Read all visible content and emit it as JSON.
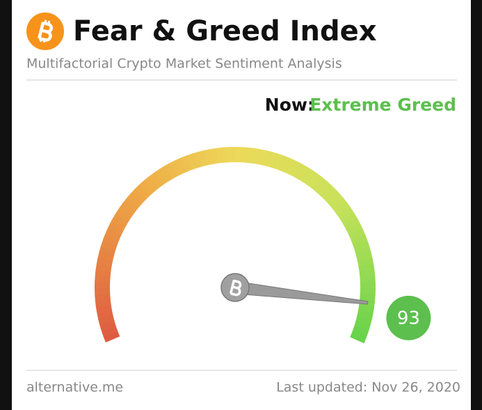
{
  "chart_data": {
    "type": "gauge",
    "title": "Fear & Greed Index",
    "subtitle": "Multifactorial Crypto Market Sentiment Analysis",
    "now_label": "Now:",
    "classification": "Extreme Greed",
    "value": 93,
    "ylim": [
      0,
      100
    ],
    "color": "#5cbf4e",
    "source": "alternative.me",
    "updated": "Last updated: Nov 26, 2020"
  }
}
